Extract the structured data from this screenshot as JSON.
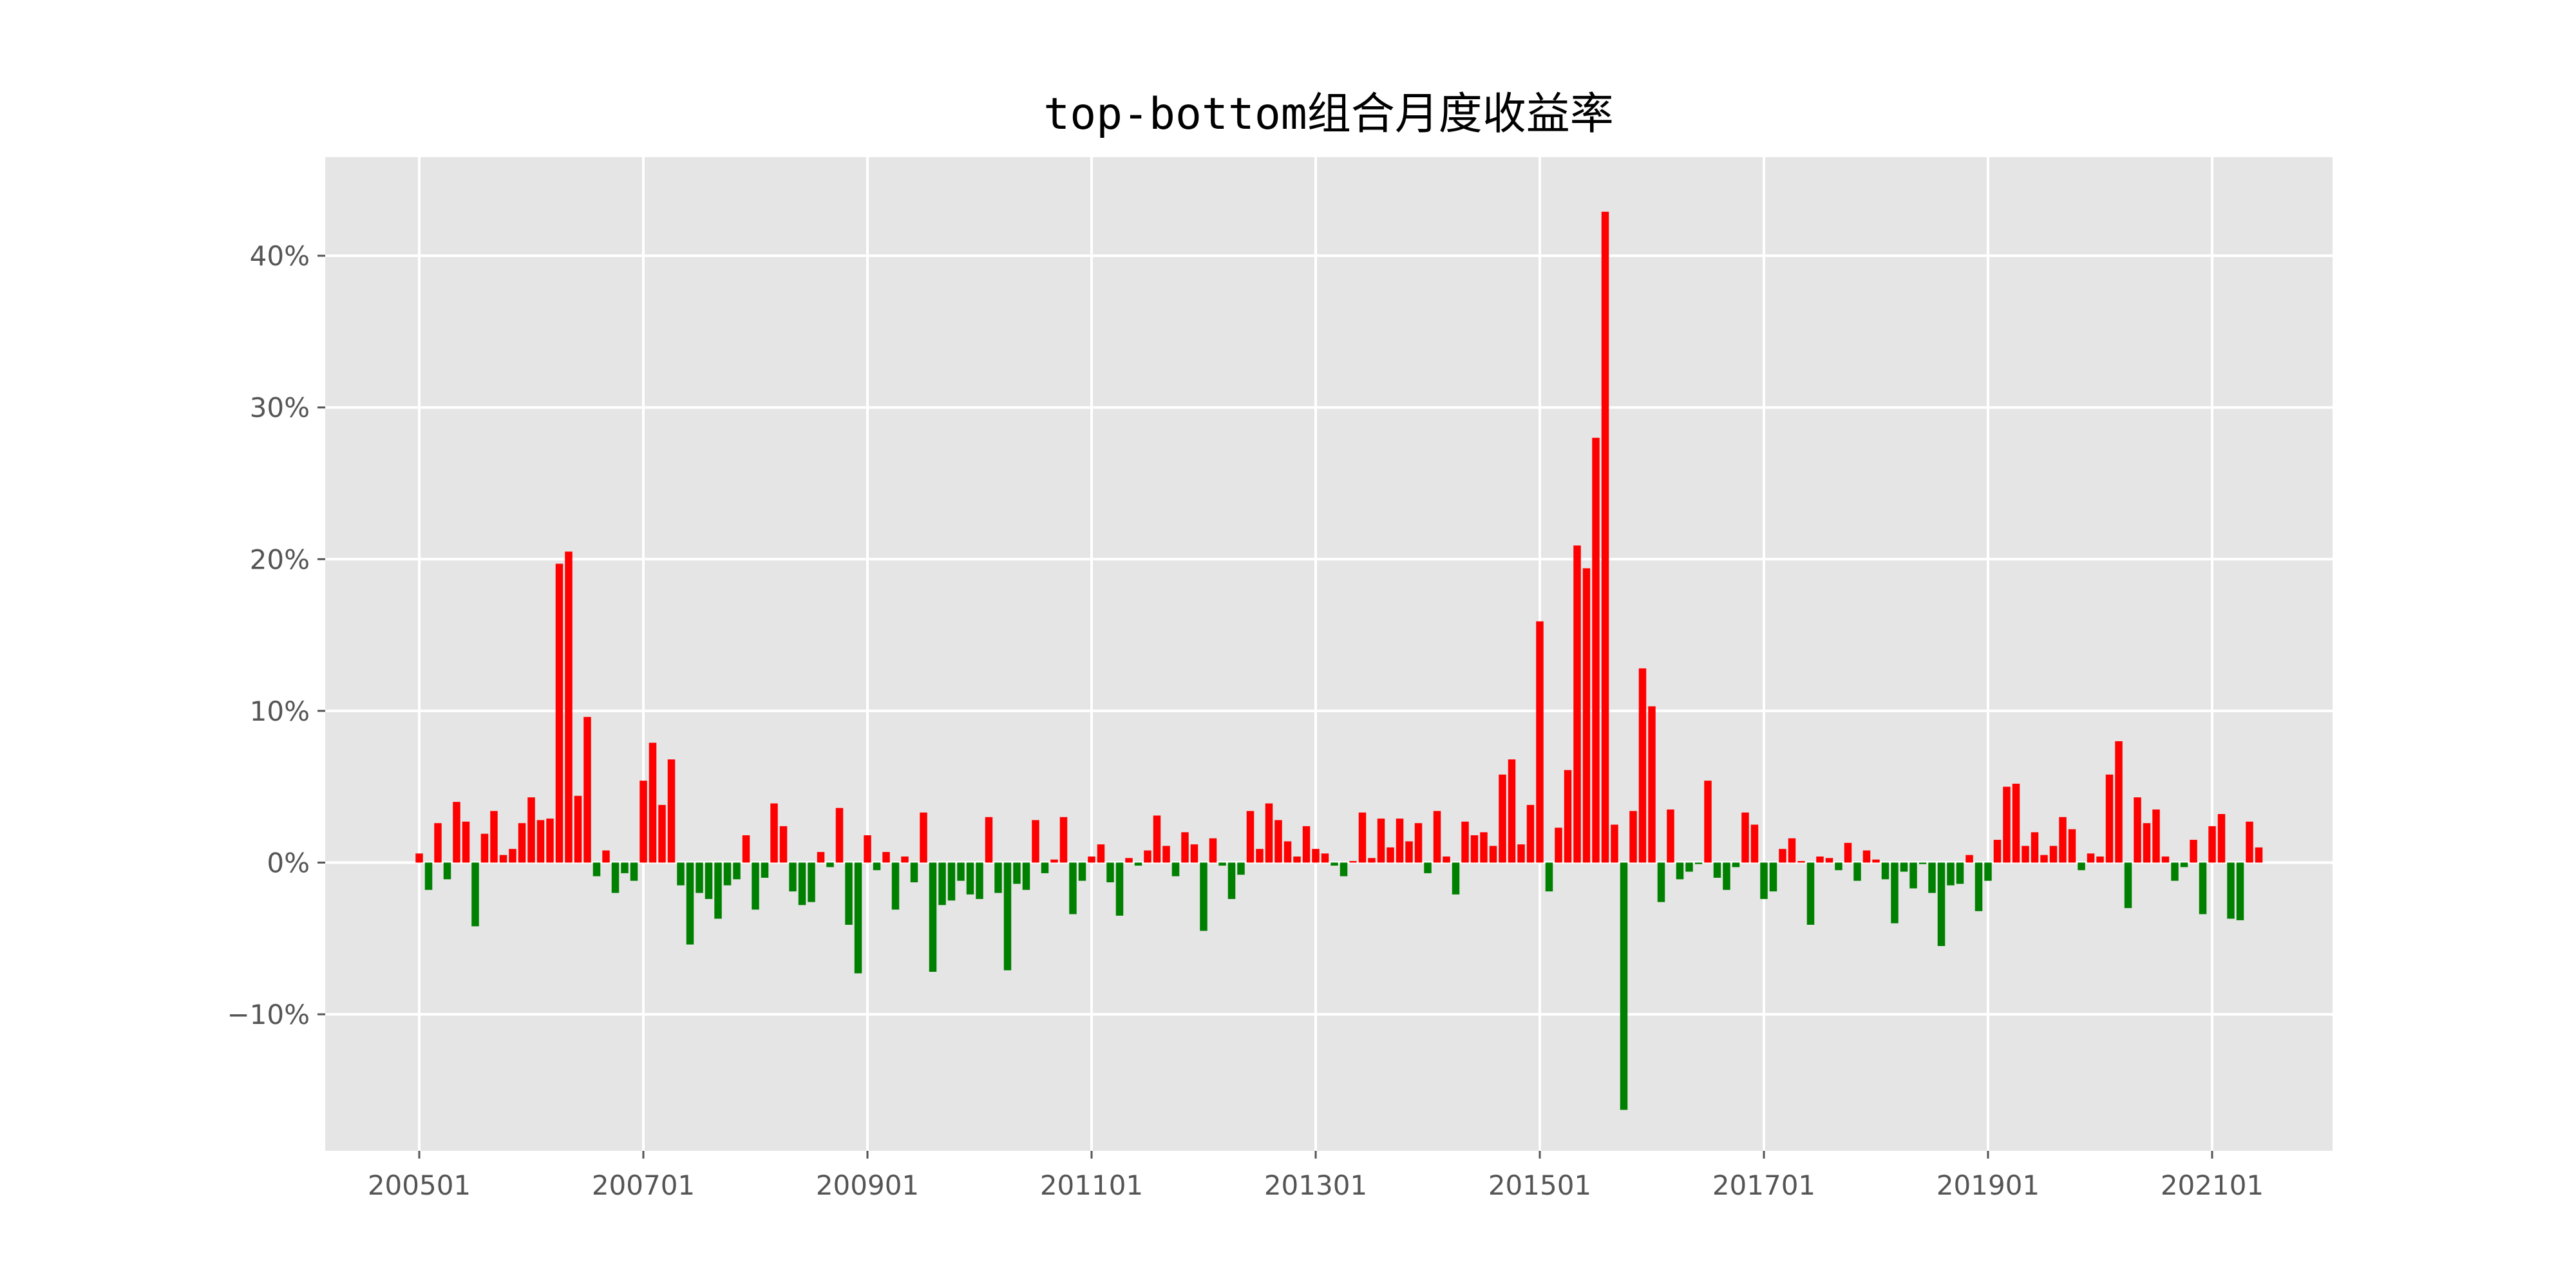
{
  "chart_data": {
    "type": "bar",
    "title": "top-bottom组合月度收益率",
    "xlabel": "",
    "ylabel": "",
    "y_unit": "%",
    "ylim": [
      -19,
      46.5
    ],
    "yticks": [
      -10,
      0,
      10,
      20,
      30,
      40
    ],
    "ytick_labels": [
      "−10%",
      "0%",
      "10%",
      "20%",
      "30%",
      "40%"
    ],
    "xtick_labels": [
      "200501",
      "200701",
      "200901",
      "201101",
      "201301",
      "201501",
      "201701",
      "201901",
      "202101"
    ],
    "first_period": "200501",
    "grid": true,
    "colors": {
      "positive": "#ff0000",
      "negative": "#008000",
      "background": "#e5e5e5",
      "grid": "#ffffff"
    },
    "values": [
      0.6,
      -1.8,
      2.6,
      -1.1,
      4.0,
      2.7,
      -4.2,
      1.9,
      3.4,
      0.5,
      0.9,
      2.6,
      4.3,
      2.8,
      2.9,
      19.7,
      20.5,
      4.4,
      9.6,
      -0.9,
      0.8,
      -2.0,
      -0.7,
      -1.2,
      5.4,
      7.9,
      3.8,
      6.8,
      -1.5,
      -5.4,
      -2.0,
      -2.4,
      -3.7,
      -1.5,
      -1.1,
      1.8,
      -3.1,
      -1.0,
      3.9,
      2.4,
      -1.9,
      -2.8,
      -2.6,
      0.7,
      -0.3,
      3.6,
      -4.1,
      -7.3,
      1.8,
      -0.5,
      0.7,
      -3.1,
      0.4,
      -1.3,
      3.3,
      -7.2,
      -2.8,
      -2.5,
      -1.2,
      -2.1,
      -2.4,
      3.0,
      -2.0,
      -7.1,
      -1.4,
      -1.8,
      2.8,
      -0.7,
      0.2,
      3.0,
      -3.4,
      -1.2,
      0.4,
      1.2,
      -1.3,
      -3.5,
      0.3,
      -0.2,
      0.8,
      3.1,
      1.1,
      -0.9,
      2.0,
      1.2,
      -4.5,
      1.6,
      -0.2,
      -2.4,
      -0.8,
      3.4,
      0.9,
      3.9,
      2.8,
      1.4,
      0.4,
      2.4,
      0.9,
      0.6,
      -0.2,
      -0.9,
      0.1,
      3.3,
      0.3,
      2.9,
      1.0,
      2.9,
      1.4,
      2.6,
      -0.7,
      3.4,
      0.4,
      -2.1,
      2.7,
      1.8,
      2.0,
      1.1,
      5.8,
      6.8,
      1.2,
      3.8,
      15.9,
      -1.9,
      2.3,
      6.1,
      20.9,
      19.4,
      28.0,
      42.9,
      2.5,
      -16.3,
      3.4,
      12.8,
      10.3,
      -2.6,
      3.5,
      -1.1,
      -0.6,
      -0.1,
      5.4,
      -1.0,
      -1.8,
      -0.3,
      3.3,
      2.5,
      -2.4,
      -1.9,
      0.9,
      1.6,
      0.1,
      -4.1,
      0.4,
      0.3,
      -0.5,
      1.3,
      -1.2,
      0.8,
      0.2,
      -1.1,
      -4.0,
      -0.6,
      -1.7,
      -0.1,
      -2.0,
      -5.5,
      -1.5,
      -1.4,
      0.5,
      -3.2,
      -1.2,
      1.5,
      5.0,
      5.2,
      1.1,
      2.0,
      0.5,
      1.1,
      3.0,
      2.2,
      -0.5,
      0.6,
      0.4,
      5.8,
      8.0,
      -3.0,
      4.3,
      2.6,
      3.5,
      0.4,
      -1.2,
      -0.3,
      1.5,
      -3.4,
      2.4,
      3.2,
      -3.7,
      -3.8,
      2.7,
      1.0
    ]
  }
}
